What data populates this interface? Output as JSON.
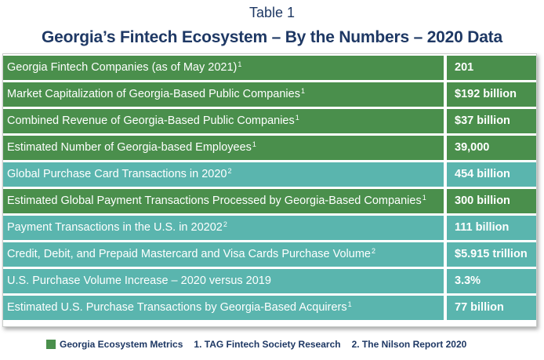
{
  "header": {
    "table_label": "Table 1",
    "title": "Georgia’s Fintech Ecosystem – By the Numbers – 2020 Data"
  },
  "colors": {
    "green": "#4a8f4c",
    "teal": "#5ab5ae",
    "title": "#1e3864"
  },
  "rows": [
    {
      "label": "Georgia Fintech Companies (as of May 2021)",
      "sup": "1",
      "value": "201",
      "style": "green"
    },
    {
      "label": "Market Capitalization of Georgia-Based Public Companies",
      "sup": "1",
      "value": "$192 billion",
      "style": "green"
    },
    {
      "label": "Combined Revenue of Georgia-Based Public Companies",
      "sup": "1",
      "value": "$37 billion",
      "style": "green"
    },
    {
      "label": "Estimated Number of Georgia-based Employees",
      "sup": "1",
      "value": "39,000",
      "style": "green"
    },
    {
      "label": "Global Purchase Card Transactions in 2020",
      "sup": "2",
      "value": "454 billion",
      "style": "teal"
    },
    {
      "label": "Estimated Global Payment Transactions Processed by Georgia-Based Companies",
      "sup": "1",
      "value": "300 billion",
      "style": "green"
    },
    {
      "label": "Payment Transactions in the U.S. in 20202",
      "sup": "2",
      "value": "111 billion",
      "style": "teal"
    },
    {
      "label": "Credit, Debit, and Prepaid Mastercard and Visa Cards Purchase Volume",
      "sup": "2",
      "value": "$5.915 trillion",
      "style": "teal"
    },
    {
      "label": "U.S. Purchase Volume Increase – 2020 versus 2019",
      "sup": "",
      "value": "3.3%",
      "style": "teal"
    },
    {
      "label": "Estimated U.S. Purchase Transactions by Georgia-Based Acquirers",
      "sup": "1",
      "value": "77 billion",
      "style": "teal"
    }
  ],
  "legend": {
    "metrics": "Georgia Ecosystem Metrics",
    "source1": "1. TAG Fintech Society Research",
    "source2": "2. The Nilson Report 2020"
  }
}
